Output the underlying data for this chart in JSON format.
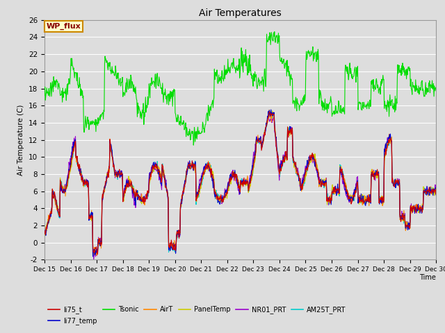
{
  "title": "Air Temperatures",
  "xlabel": "Time",
  "ylabel": "Air Temperature (C)",
  "ylim": [
    -2,
    26
  ],
  "yticks": [
    -2,
    0,
    2,
    4,
    6,
    8,
    10,
    12,
    14,
    16,
    18,
    20,
    22,
    24,
    26
  ],
  "xtick_labels": [
    "Dec 15",
    "Dec 16",
    "Dec 17",
    "Dec 18",
    "Dec 19",
    "Dec 20",
    "Dec 21",
    "Dec 22",
    "Dec 23",
    "Dec 24",
    "Dec 25",
    "Dec 26",
    "Dec 27",
    "Dec 28",
    "Dec 29",
    "Dec 30"
  ],
  "series_colors": {
    "li75_t": "#cc0000",
    "li77_temp": "#0000cc",
    "Tsonic": "#00dd00",
    "AirT": "#ff8800",
    "PanelTemp": "#cccc00",
    "NR01_PRT": "#9900cc",
    "AM25T_PRT": "#00cccc"
  },
  "legend_label": "WP_flux",
  "legend_facecolor": "#ffffcc",
  "legend_edgecolor": "#cc8800",
  "legend_textcolor": "#880000",
  "plot_background": "#dddddd",
  "grid_color": "#ffffff",
  "figsize": [
    6.4,
    4.8
  ],
  "dpi": 100
}
